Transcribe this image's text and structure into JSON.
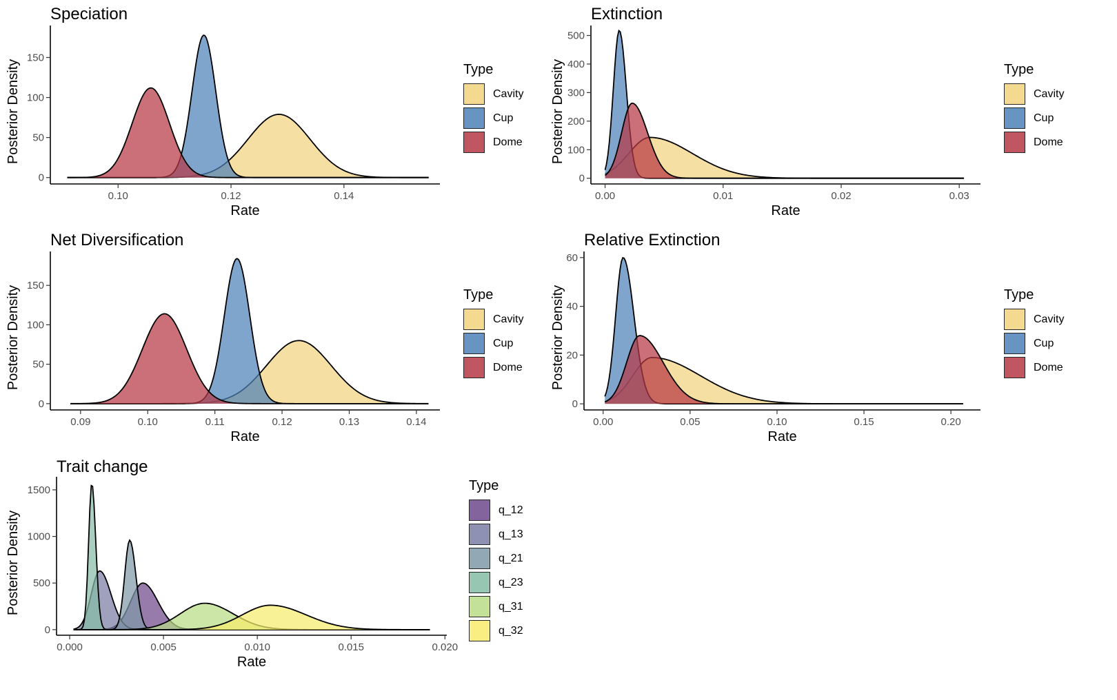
{
  "charts": {
    "colors": {
      "Cavity": "#f3d37e",
      "Cup": "#4d82b8",
      "Dome": "#b73945",
      "q_12": "#6f4a8b",
      "q_13": "#7b7ea4",
      "q_21": "#7f9aa8",
      "q_23": "#86bda6",
      "q_31": "#b9dc86",
      "q_32": "#f7ec6c"
    },
    "legend_title": "Type",
    "ylabel": "Posterior Density",
    "xlabel": "Rate"
  },
  "chart_data": [
    {
      "id": "speciation",
      "type": "area",
      "title": "Speciation",
      "xlabel": "Rate",
      "ylabel": "Posterior Density",
      "xlim": [
        0.088,
        0.157
      ],
      "ylim": [
        -8,
        190
      ],
      "xticks": [
        0.1,
        0.12,
        0.14
      ],
      "xtick_labels": [
        "0.10",
        "0.12",
        "0.14"
      ],
      "yticks": [
        0,
        50,
        100,
        150
      ],
      "ytick_labels": [
        "0",
        "50",
        "100",
        "150"
      ],
      "curve_range": [
        0.091,
        0.155
      ],
      "legend": [
        "Cavity",
        "Cup",
        "Dome"
      ],
      "series": [
        {
          "name": "Cavity",
          "dist": "normal",
          "mode": 0.1285,
          "sdl": 0.0055,
          "sdr": 0.0055,
          "peak": 79
        },
        {
          "name": "Cup",
          "dist": "normal",
          "mode": 0.1152,
          "sdl": 0.0021,
          "sdr": 0.0021,
          "peak": 178
        },
        {
          "name": "Dome",
          "dist": "normal",
          "mode": 0.1058,
          "sdl": 0.0033,
          "sdr": 0.0033,
          "peak": 112
        }
      ]
    },
    {
      "id": "extinction",
      "type": "area",
      "title": "Extinction",
      "xlabel": "Rate",
      "ylabel": "Posterior Density",
      "xlim": [
        -0.0012,
        0.0318
      ],
      "ylim": [
        -20,
        535
      ],
      "xticks": [
        0,
        0.01,
        0.02,
        0.03
      ],
      "xtick_labels": [
        "0.00",
        "0.01",
        "0.02",
        "0.03"
      ],
      "yticks": [
        0,
        100,
        200,
        300,
        400,
        500
      ],
      "ytick_labels": [
        "0",
        "100",
        "200",
        "300",
        "400",
        "500"
      ],
      "curve_range": [
        0,
        0.0304
      ],
      "legend": [
        "Cavity",
        "Cup",
        "Dome"
      ],
      "series": [
        {
          "name": "Cavity",
          "dist": "skew",
          "mode": 0.0038,
          "sdl": 0.0018,
          "sdr": 0.0036,
          "peak": 143
        },
        {
          "name": "Cup",
          "dist": "skew",
          "mode": 0.0012,
          "sdl": 0.0005,
          "sdr": 0.0006,
          "peak": 518
        },
        {
          "name": "Dome",
          "dist": "skew",
          "mode": 0.0023,
          "sdl": 0.0009,
          "sdr": 0.0013,
          "peak": 263
        }
      ]
    },
    {
      "id": "net-diversification",
      "type": "area",
      "title": "Net Diversification",
      "xlabel": "Rate",
      "ylabel": "Posterior Density",
      "xlim": [
        0.0855,
        0.1435
      ],
      "ylim": [
        -8,
        193
      ],
      "xticks": [
        0.09,
        0.1,
        0.11,
        0.12,
        0.13,
        0.14
      ],
      "xtick_labels": [
        "0.09",
        "0.10",
        "0.11",
        "0.12",
        "0.13",
        "0.14"
      ],
      "yticks": [
        0,
        50,
        100,
        150
      ],
      "ytick_labels": [
        "0",
        "50",
        "100",
        "150"
      ],
      "curve_range": [
        0.0885,
        0.1418
      ],
      "legend": [
        "Cavity",
        "Cup",
        "Dome"
      ],
      "series": [
        {
          "name": "Cavity",
          "dist": "normal",
          "mode": 0.1225,
          "sdl": 0.0048,
          "sdr": 0.0048,
          "peak": 80
        },
        {
          "name": "Cup",
          "dist": "normal",
          "mode": 0.1133,
          "sdl": 0.0019,
          "sdr": 0.0019,
          "peak": 184
        },
        {
          "name": "Dome",
          "dist": "normal",
          "mode": 0.1025,
          "sdl": 0.0033,
          "sdr": 0.0033,
          "peak": 114
        }
      ]
    },
    {
      "id": "relative-extinction",
      "type": "area",
      "title": "Relative Extinction",
      "xlabel": "Rate",
      "ylabel": "Posterior Density",
      "xlim": [
        -0.011,
        0.217
      ],
      "ylim": [
        -2.5,
        62.5
      ],
      "xticks": [
        0,
        0.05,
        0.1,
        0.15,
        0.2
      ],
      "xtick_labels": [
        "0.00",
        "0.05",
        "0.10",
        "0.15",
        "0.20"
      ],
      "yticks": [
        0,
        20,
        40,
        60
      ],
      "ytick_labels": [
        "0",
        "20",
        "40",
        "60"
      ],
      "curve_range": [
        0.001,
        0.207
      ],
      "legend": [
        "Cavity",
        "Cup",
        "Dome"
      ],
      "series": [
        {
          "name": "Cavity",
          "dist": "skew",
          "mode": 0.028,
          "sdl": 0.011,
          "sdr": 0.028,
          "peak": 19
        },
        {
          "name": "Cup",
          "dist": "skew",
          "mode": 0.0115,
          "sdl": 0.0043,
          "sdr": 0.0062,
          "peak": 60
        },
        {
          "name": "Dome",
          "dist": "skew",
          "mode": 0.021,
          "sdl": 0.0075,
          "sdr": 0.0135,
          "peak": 28
        }
      ]
    },
    {
      "id": "trait-change",
      "type": "area",
      "title": "Trait change",
      "xlabel": "Rate",
      "ylabel": "Posterior Density",
      "xlim": [
        -0.0007,
        0.0201
      ],
      "ylim": [
        -60,
        1640
      ],
      "xticks": [
        0,
        0.005,
        0.01,
        0.015,
        0.02
      ],
      "xtick_labels": [
        "0.000",
        "0.005",
        "0.010",
        "0.015",
        "0.020"
      ],
      "yticks": [
        0,
        500,
        1000,
        1500
      ],
      "ytick_labels": [
        "0",
        "500",
        "1000",
        "1500"
      ],
      "curve_range": [
        0.0002,
        0.0192
      ],
      "legend": [
        "q_12",
        "q_13",
        "q_21",
        "q_23",
        "q_31",
        "q_32"
      ],
      "series": [
        {
          "name": "q_12",
          "dist": "skew",
          "mode": 0.0039,
          "sdl": 0.00065,
          "sdr": 0.0008,
          "peak": 500
        },
        {
          "name": "q_13",
          "dist": "skew",
          "mode": 0.0016,
          "sdl": 0.00045,
          "sdr": 0.0006,
          "peak": 630
        },
        {
          "name": "q_21",
          "dist": "skew",
          "mode": 0.0032,
          "sdl": 0.00027,
          "sdr": 0.00033,
          "peak": 960
        },
        {
          "name": "q_23",
          "dist": "skew",
          "mode": 0.00118,
          "sdl": 0.00017,
          "sdr": 0.00021,
          "peak": 1570
        },
        {
          "name": "q_31",
          "dist": "skew",
          "mode": 0.0072,
          "sdl": 0.0013,
          "sdr": 0.0015,
          "peak": 283
        },
        {
          "name": "q_32",
          "dist": "skew",
          "mode": 0.0107,
          "sdl": 0.0015,
          "sdr": 0.0019,
          "peak": 262
        }
      ]
    }
  ]
}
